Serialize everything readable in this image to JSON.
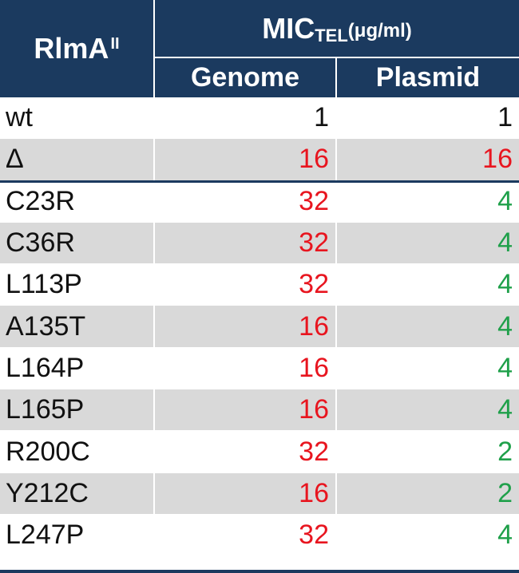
{
  "header": {
    "rlma_label": "RlmA",
    "rlma_sup": "II",
    "mic_label": "MIC",
    "mic_sub": "TEL",
    "mic_unit": "(μg/ml)",
    "genome_label": "Genome",
    "plasmid_label": "Plasmid"
  },
  "colors": {
    "header_bg": "#1b3a5f",
    "shade": "#d9d9d9",
    "red": "#e8151f",
    "green": "#1fa04a",
    "black": "#111111"
  },
  "rows": [
    {
      "name": "wt",
      "genome": "1",
      "plasmid": "1",
      "genome_color": "black",
      "plasmid_color": "black",
      "shaded": false
    },
    {
      "name": "Δ",
      "genome": "16",
      "plasmid": "16",
      "genome_color": "red",
      "plasmid_color": "red",
      "shaded": true
    },
    {
      "name": "C23R",
      "genome": "32",
      "plasmid": "4",
      "genome_color": "red",
      "plasmid_color": "green",
      "shaded": false
    },
    {
      "name": "C36R",
      "genome": "32",
      "plasmid": "4",
      "genome_color": "red",
      "plasmid_color": "green",
      "shaded": true
    },
    {
      "name": "L113P",
      "genome": "32",
      "plasmid": "4",
      "genome_color": "red",
      "plasmid_color": "green",
      "shaded": false
    },
    {
      "name": "A135T",
      "genome": "16",
      "plasmid": "4",
      "genome_color": "red",
      "plasmid_color": "green",
      "shaded": true
    },
    {
      "name": "L164P",
      "genome": "16",
      "plasmid": "4",
      "genome_color": "red",
      "plasmid_color": "green",
      "shaded": false
    },
    {
      "name": "L165P",
      "genome": "16",
      "plasmid": "4",
      "genome_color": "red",
      "plasmid_color": "green",
      "shaded": true
    },
    {
      "name": "R200C",
      "genome": "32",
      "plasmid": "2",
      "genome_color": "red",
      "plasmid_color": "green",
      "shaded": false
    },
    {
      "name": "Y212C",
      "genome": "16",
      "plasmid": "2",
      "genome_color": "red",
      "plasmid_color": "green",
      "shaded": true
    },
    {
      "name": "L247P",
      "genome": "32",
      "plasmid": "4",
      "genome_color": "red",
      "plasmid_color": "green",
      "shaded": false
    }
  ]
}
